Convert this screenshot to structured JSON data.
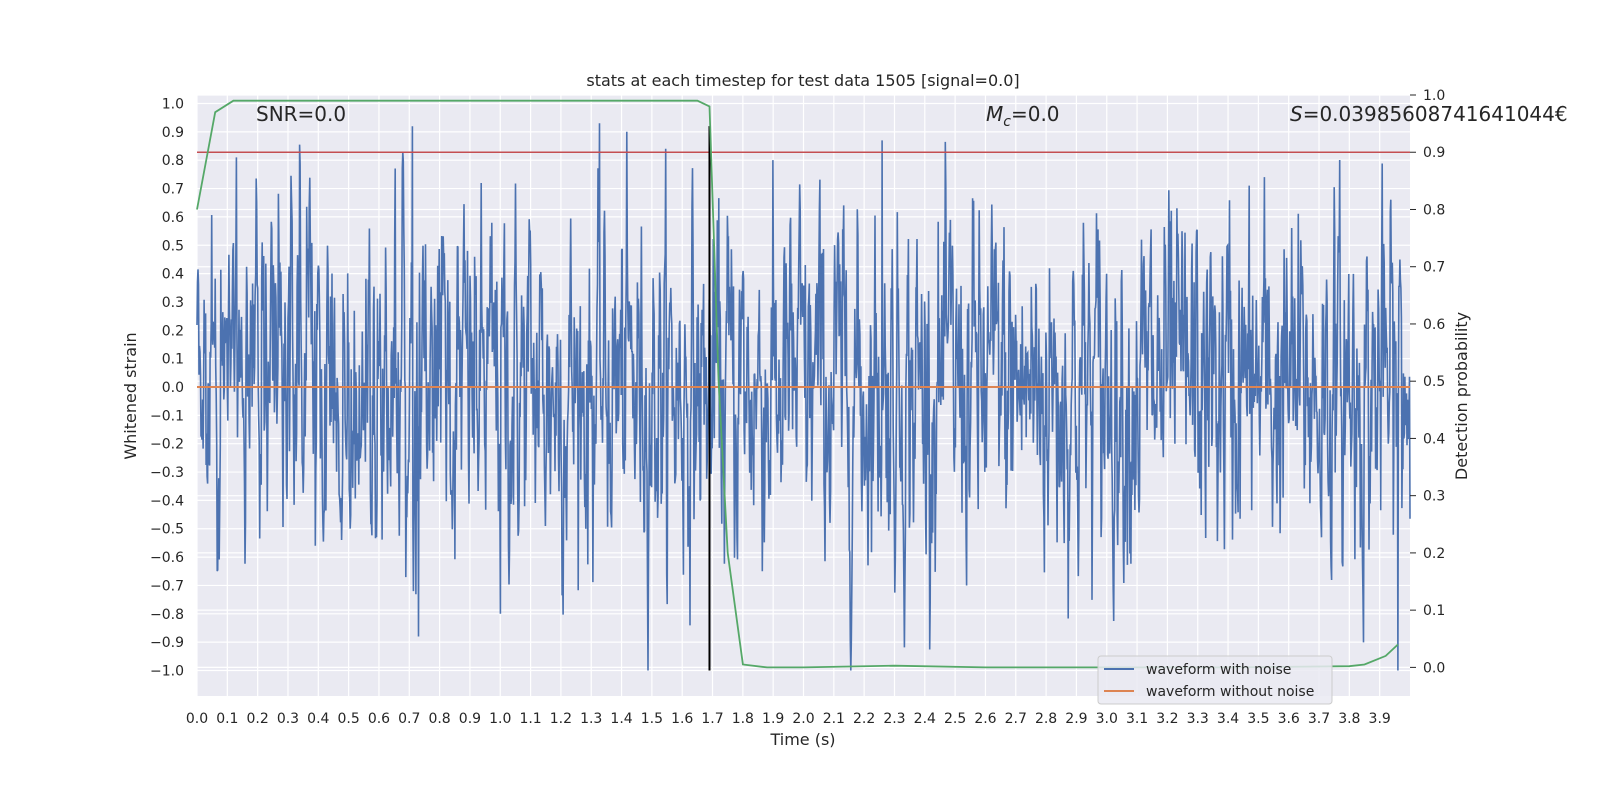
{
  "chart_data": {
    "type": "line",
    "title": "stats at each timestep for test data 1505 [signal=0.0]",
    "xlabel": "Time (s)",
    "ylabel": "Whitened strain",
    "y2label": "Detection probability",
    "xlim": [
      0.0,
      4.0
    ],
    "ylim": [
      -1.09,
      1.03
    ],
    "y2lim": [
      -0.05,
      1.0
    ],
    "x_ticks": [
      "0.0",
      "0.1",
      "0.2",
      "0.3",
      "0.4",
      "0.5",
      "0.6",
      "0.7",
      "0.8",
      "0.9",
      "1.0",
      "1.1",
      "1.2",
      "1.3",
      "1.4",
      "1.5",
      "1.6",
      "1.7",
      "1.8",
      "1.9",
      "2.0",
      "2.1",
      "2.2",
      "2.3",
      "2.4",
      "2.5",
      "2.6",
      "2.7",
      "2.8",
      "2.9",
      "3.0",
      "3.1",
      "3.2",
      "3.3",
      "3.4",
      "3.5",
      "3.6",
      "3.7",
      "3.8",
      "3.9"
    ],
    "y_ticks": [
      "1.0",
      "0.9",
      "0.8",
      "0.7",
      "0.6",
      "0.5",
      "0.4",
      "0.3",
      "0.2",
      "0.1",
      "0.0",
      "−0.1",
      "−0.2",
      "−0.3",
      "−0.4",
      "−0.5",
      "−0.6",
      "−0.7",
      "−0.8",
      "−0.9",
      "−1.0"
    ],
    "y2_ticks": [
      "1.0",
      "0.9",
      "0.8",
      "0.7",
      "0.6",
      "0.5",
      "0.4",
      "0.3",
      "0.2",
      "0.1",
      "0.0"
    ],
    "grid": true,
    "legend_position": "lower-right",
    "annotations": {
      "snr": "SNR=0.0",
      "mc_symbol": "M",
      "mc_sub": "c",
      "mc_value": "=0.0",
      "s_symbol": "S",
      "s_value": "=0.03985608741641044€"
    },
    "series": [
      {
        "name": "waveform with noise",
        "color": "#4c72b0",
        "note": "dense whitened noise, amplitude roughly ±0.5, peaks near ±0.9",
        "extremes": [
          {
            "x": 0.13,
            "y": 0.81
          },
          {
            "x": 0.71,
            "y": 0.92
          },
          {
            "x": 0.73,
            "y": -0.88
          },
          {
            "x": 1.0,
            "y": -0.8
          },
          {
            "x": 2.26,
            "y": 0.87
          },
          {
            "x": 3.96,
            "y": -1.0
          }
        ]
      },
      {
        "name": "waveform without noise",
        "color": "#dd8452",
        "x": [
          0.0,
          4.0
        ],
        "y": [
          0.0,
          0.0
        ]
      },
      {
        "name": "detection probability",
        "axis": "right",
        "color": "#55a868",
        "x": [
          0.0,
          0.06,
          0.12,
          0.2,
          0.4,
          0.8,
          1.2,
          1.6,
          1.65,
          1.69,
          1.72,
          1.75,
          1.8,
          1.88,
          2.0,
          2.3,
          2.6,
          3.0,
          3.4,
          3.8,
          3.85,
          3.92,
          3.96
        ],
        "y": [
          0.8,
          0.97,
          0.99,
          0.99,
          0.99,
          0.99,
          0.99,
          0.99,
          0.99,
          0.98,
          0.5,
          0.2,
          0.005,
          0.0,
          0.0,
          0.003,
          0.0,
          0.0,
          0.0,
          0.002,
          0.005,
          0.02,
          0.04
        ]
      }
    ],
    "threshold": {
      "axis": "right",
      "value": 0.9,
      "color": "#c44e52"
    },
    "event_marker": {
      "x": 1.69,
      "y_from": -1.0,
      "y_to": 0.92,
      "color": "#000000"
    }
  }
}
